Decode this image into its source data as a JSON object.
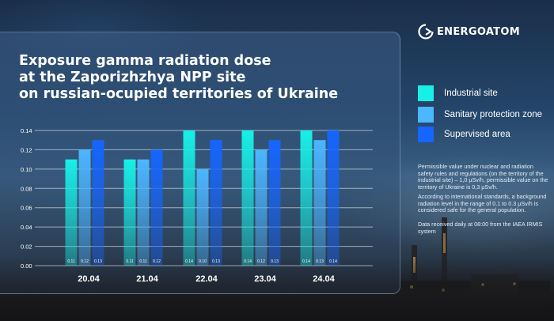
{
  "brand": {
    "name": "ENERGOATOM"
  },
  "title": "Exposure gamma radiation dose\nat the Zaporizhzhya NPP site\non russian-ocupied territories of Ukraine",
  "notes": {
    "p1": [
      "Permissible value under nuclear and radiation",
      "safety rules and regulations (on the territory of the",
      "industrial site) – 1,0 μSv/h, permissible value on the",
      "territory of Ukraine is 0,3 μSv/h."
    ],
    "p2": [
      "According to international standards, a background",
      "radiation level in the range of 0.1 to 0.3 μSv/h is",
      "considered safe for the general population."
    ],
    "p3": [
      "Data received daily at 08:00 from the IAEA IRMIS",
      "system"
    ]
  },
  "chart_data": {
    "type": "bar",
    "title": "Exposure gamma radiation dose at the Zaporizhzhya NPP site on russian-ocupied territories of Ukraine",
    "categories": [
      "20.04",
      "21.04",
      "22.04",
      "23.04",
      "24.04"
    ],
    "series": [
      {
        "name": "Industrial site",
        "values": [
          0.11,
          0.11,
          0.14,
          0.14,
          0.14
        ],
        "labels": [
          "0.11",
          "0.11",
          "0.14",
          "0.14",
          "0.14"
        ],
        "color": "#17f0e6"
      },
      {
        "name": "Sanitary protection zone",
        "values": [
          0.12,
          0.11,
          0.1,
          0.12,
          0.13
        ],
        "labels": [
          "0.12",
          "0.11",
          "0.10",
          "0.12",
          "0.13"
        ],
        "color": "#4cb6ff"
      },
      {
        "name": "Supervised area",
        "values": [
          0.13,
          0.12,
          0.13,
          0.13,
          0.14
        ],
        "labels": [
          "0.13",
          "0.12",
          "0.13",
          "0.13",
          "0.14"
        ],
        "color": "#1565ff"
      }
    ],
    "yticks": [
      "0.00",
      "0.02",
      "0.04",
      "0.06",
      "0.08",
      "0.10",
      "0.12",
      "0.14"
    ],
    "ylim": [
      0,
      0.14
    ],
    "grid": true,
    "legend_position": "right"
  }
}
